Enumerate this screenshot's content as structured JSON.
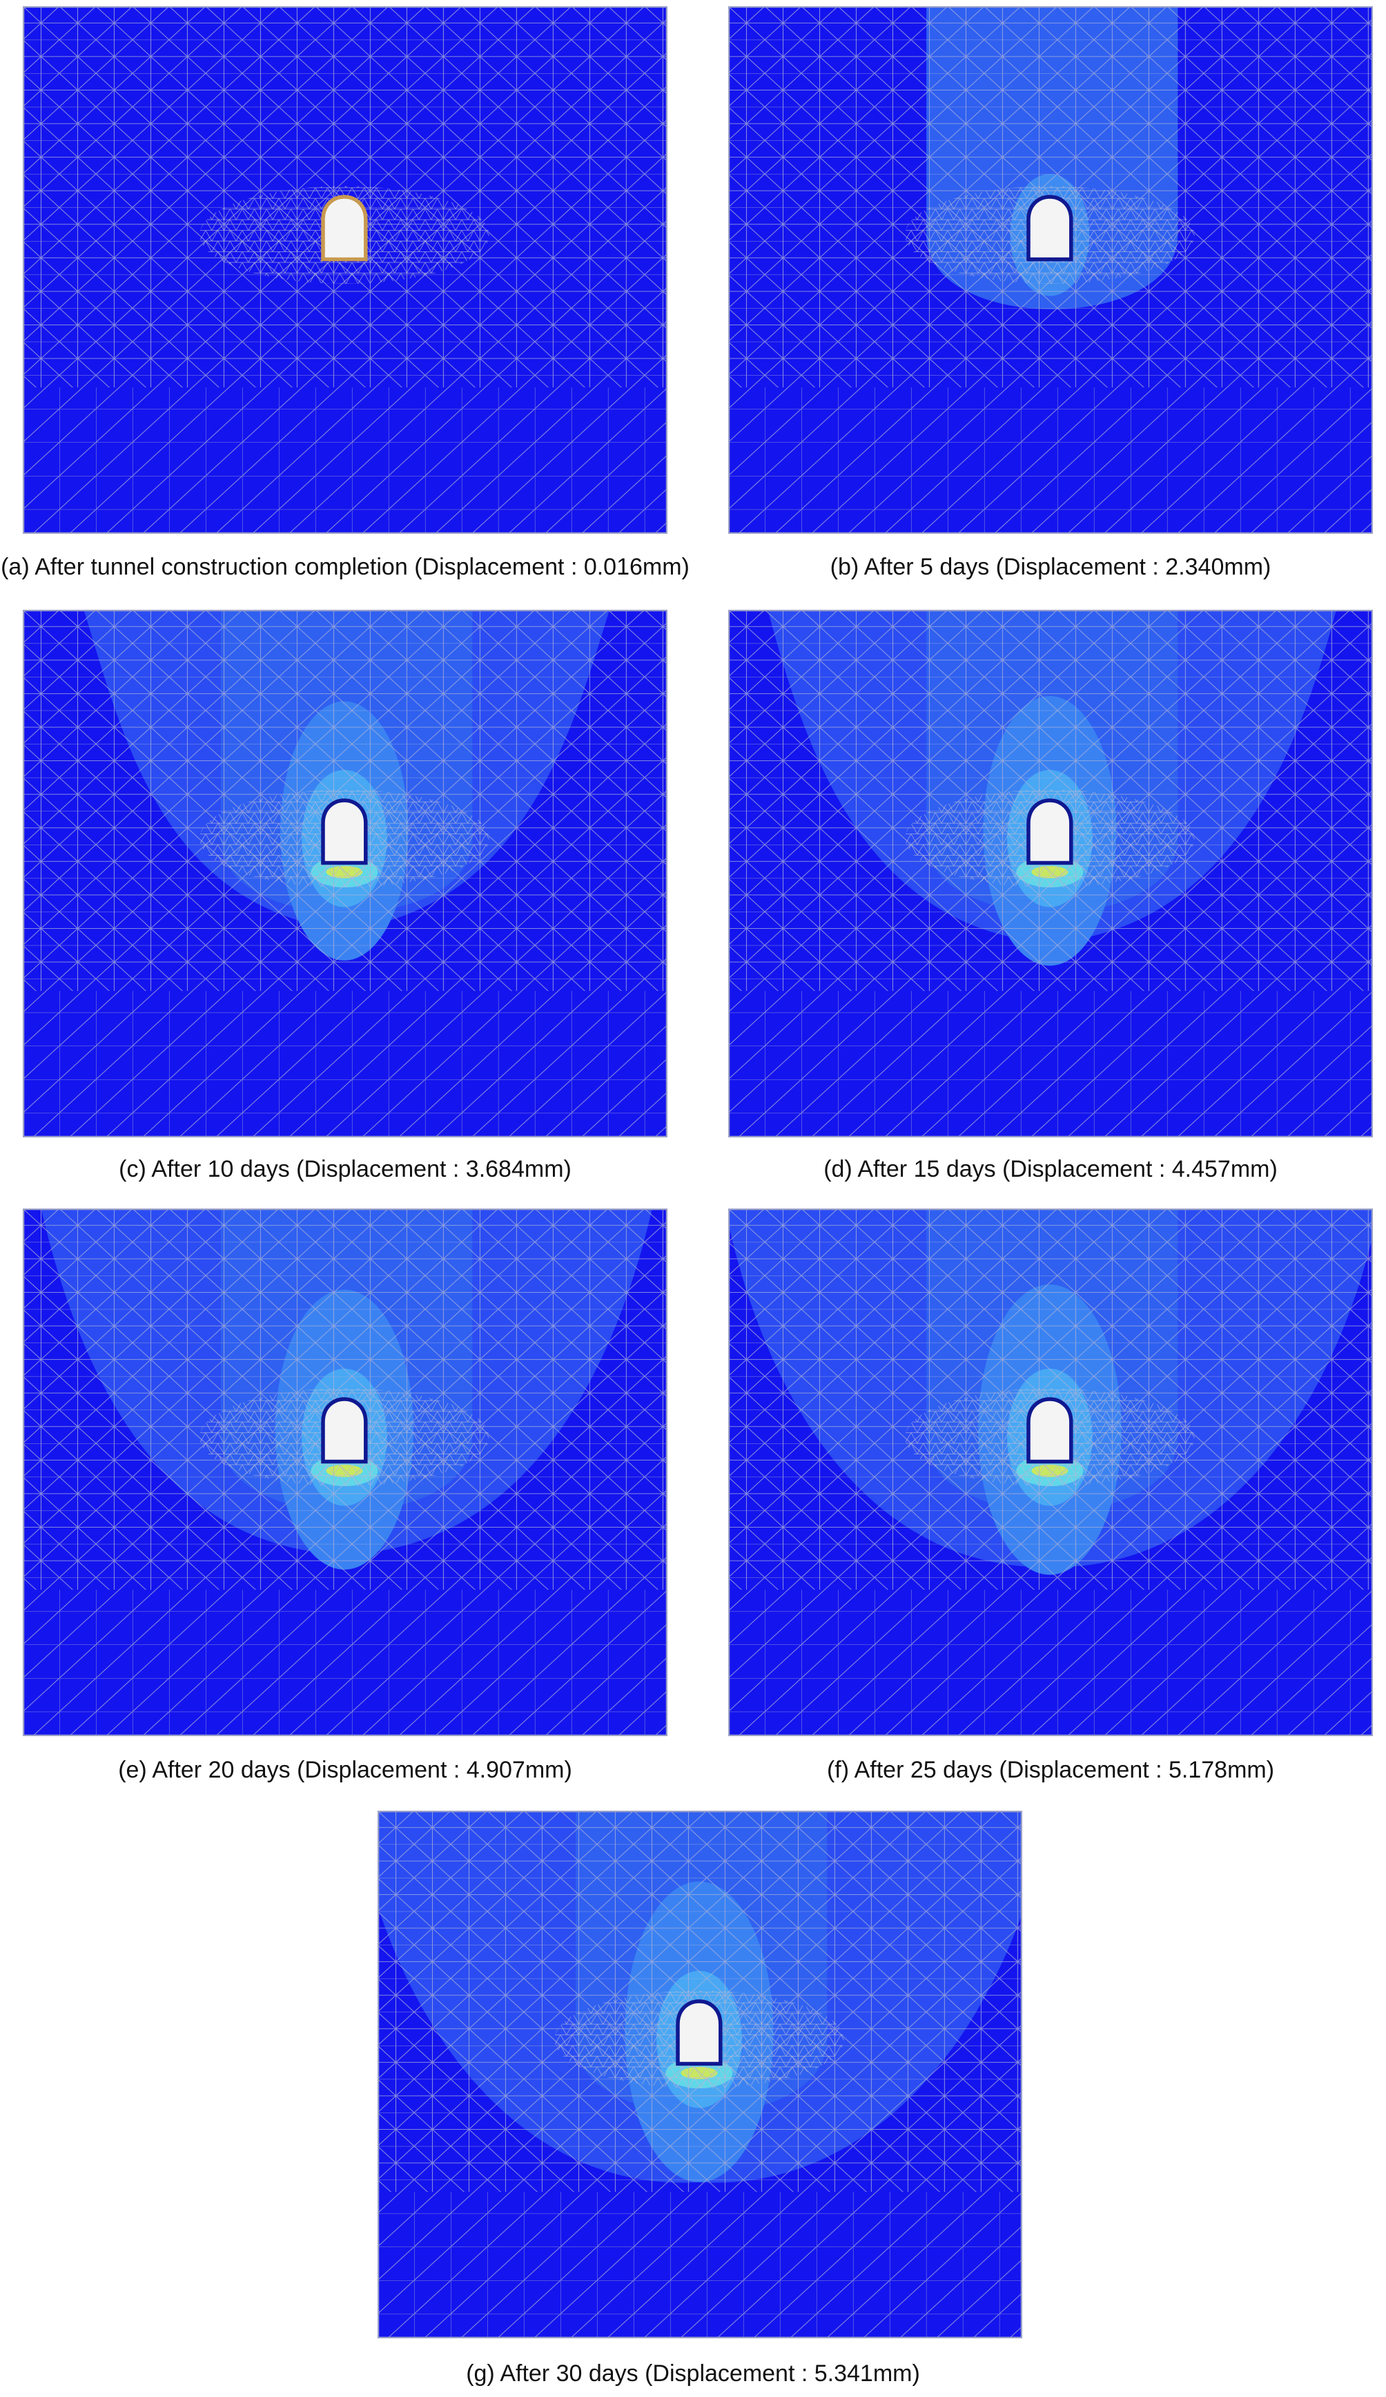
{
  "panels": [
    {
      "caption": "(a) After tunnel construction completion (Displacement : 0.016mm)"
    },
    {
      "caption": "(b) After 5 days (Displacement : 2.340mm)"
    },
    {
      "caption": "(c) After 10 days (Displacement : 3.684mm)"
    },
    {
      "caption": "(d) After 15 days (Displacement : 4.457mm)"
    },
    {
      "caption": "(e) After 20 days (Displacement : 4.907mm)"
    },
    {
      "caption": "(f) After 25 days (Displacement : 5.178mm)"
    },
    {
      "caption": "(g) After 30 days (Displacement : 5.341mm)"
    }
  ]
}
